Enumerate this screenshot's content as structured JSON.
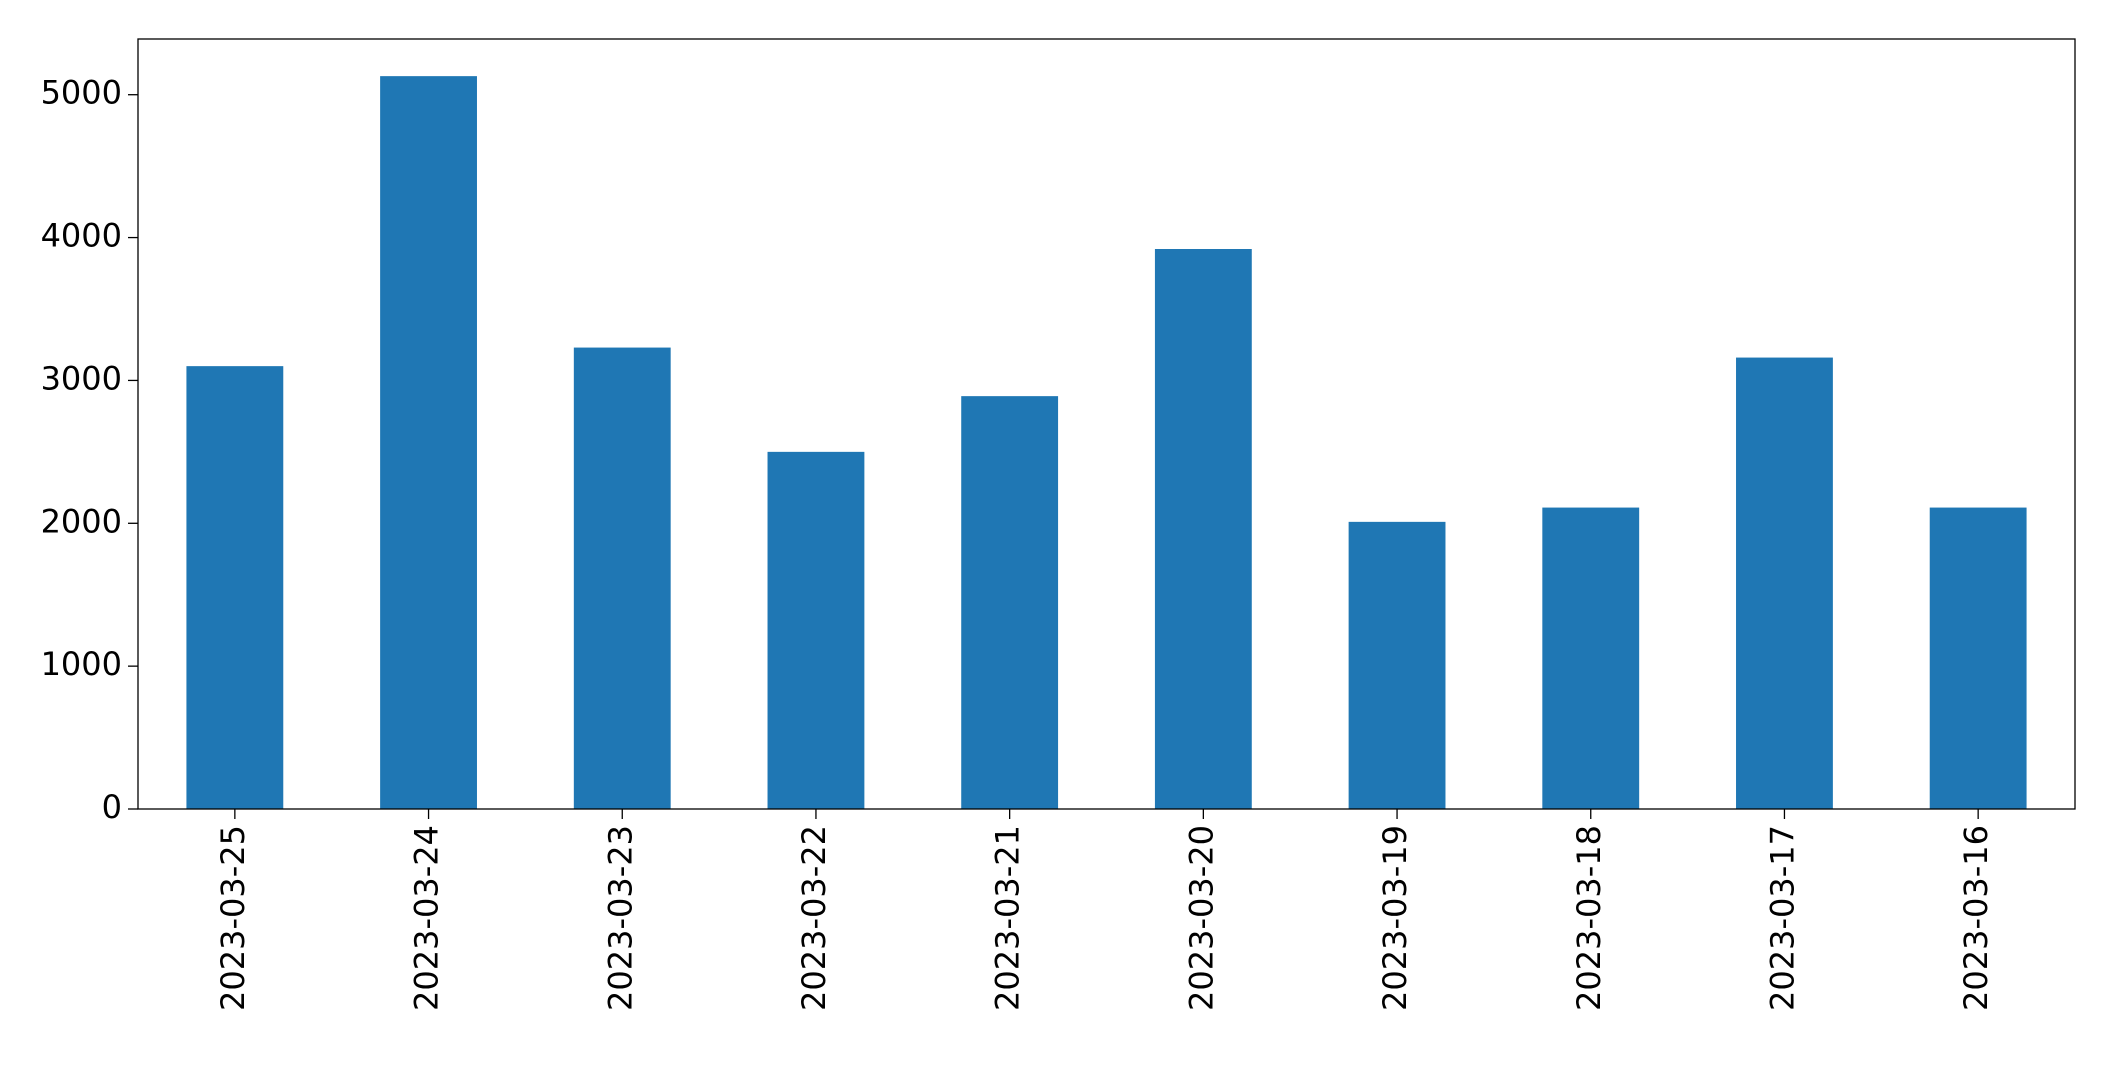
{
  "chart_data": {
    "type": "bar",
    "categories": [
      "2023-03-25",
      "2023-03-24",
      "2023-03-23",
      "2023-03-22",
      "2023-03-21",
      "2023-03-20",
      "2023-03-19",
      "2023-03-18",
      "2023-03-17",
      "2023-03-16"
    ],
    "values": [
      3100,
      5130,
      3230,
      2500,
      2890,
      3920,
      2010,
      2110,
      3160,
      2110
    ],
    "color": "#1f77b4",
    "ylim": [
      0,
      5390
    ],
    "yticks": [
      0,
      1000,
      2000,
      3000,
      4000,
      5000
    ],
    "grid": false
  }
}
